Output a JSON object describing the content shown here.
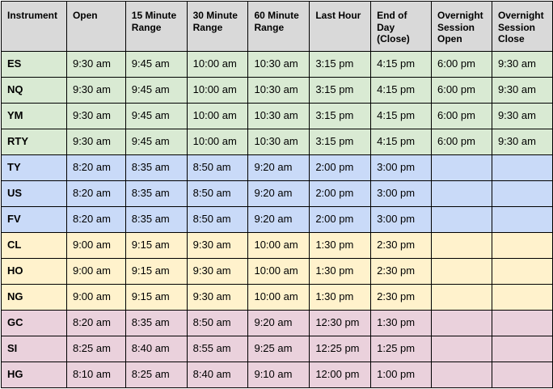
{
  "colors": {
    "header": "#d9d9d9",
    "equity": "#d9ead3",
    "bond": "#c9daf8",
    "energy": "#fff2cc",
    "metal": "#ead1dc"
  },
  "headers": [
    "Instrument",
    "Open",
    "15 Minute Range",
    "30 Minute Range",
    "60 Minute Range",
    "Last Hour",
    "End of Day (Close)",
    "Overnight Session Open",
    "Overnight Session Close"
  ],
  "rows": [
    {
      "group": "equity",
      "cells": [
        "ES",
        "9:30 am",
        "9:45 am",
        "10:00 am",
        "10:30 am",
        "3:15 pm",
        "4:15 pm",
        "6:00 pm",
        "9:30 am"
      ]
    },
    {
      "group": "equity",
      "cells": [
        "NQ",
        "9:30 am",
        "9:45 am",
        "10:00 am",
        "10:30 am",
        "3:15 pm",
        "4:15 pm",
        "6:00 pm",
        "9:30 am"
      ]
    },
    {
      "group": "equity",
      "cells": [
        "YM",
        "9:30 am",
        "9:45 am",
        "10:00 am",
        "10:30 am",
        "3:15 pm",
        "4:15 pm",
        "6:00 pm",
        "9:30 am"
      ]
    },
    {
      "group": "equity",
      "cells": [
        "RTY",
        "9:30 am",
        "9:45 am",
        "10:00 am",
        "10:30 am",
        "3:15 pm",
        "4:15 pm",
        "6:00 pm",
        "9:30 am"
      ]
    },
    {
      "group": "bond",
      "cells": [
        "TY",
        "8:20 am",
        "8:35 am",
        "8:50 am",
        "9:20 am",
        "2:00 pm",
        "3:00 pm",
        "",
        ""
      ]
    },
    {
      "group": "bond",
      "cells": [
        "US",
        "8:20 am",
        "8:35 am",
        "8:50 am",
        "9:20 am",
        "2:00 pm",
        "3:00 pm",
        "",
        ""
      ]
    },
    {
      "group": "bond",
      "cells": [
        "FV",
        "8:20 am",
        "8:35 am",
        "8:50 am",
        "9:20 am",
        "2:00 pm",
        "3:00 pm",
        "",
        ""
      ]
    },
    {
      "group": "energy",
      "cells": [
        "CL",
        "9:00 am",
        "9:15 am",
        "9:30 am",
        "10:00 am",
        "1:30 pm",
        "2:30 pm",
        "",
        ""
      ]
    },
    {
      "group": "energy",
      "cells": [
        "HO",
        "9:00 am",
        "9:15 am",
        "9:30 am",
        "10:00 am",
        "1:30 pm",
        "2:30 pm",
        "",
        ""
      ]
    },
    {
      "group": "energy",
      "cells": [
        "NG",
        "9:00 am",
        "9:15 am",
        "9:30 am",
        "10:00 am",
        "1:30 pm",
        "2:30 pm",
        "",
        ""
      ]
    },
    {
      "group": "metal",
      "cells": [
        "GC",
        "8:20 am",
        "8:35 am",
        "8:50 am",
        "9:20 am",
        "12:30 pm",
        "1:30 pm",
        "",
        ""
      ]
    },
    {
      "group": "metal",
      "cells": [
        "SI",
        "8:25 am",
        "8:40 am",
        "8:55 am",
        "9:25 am",
        "12:25 pm",
        "1:25 pm",
        "",
        ""
      ]
    },
    {
      "group": "metal",
      "cells": [
        "HG",
        "8:10 am",
        "8:25 am",
        "8:40 am",
        "9:10 am",
        "12:00 pm",
        "1:00 pm",
        "",
        ""
      ]
    }
  ]
}
